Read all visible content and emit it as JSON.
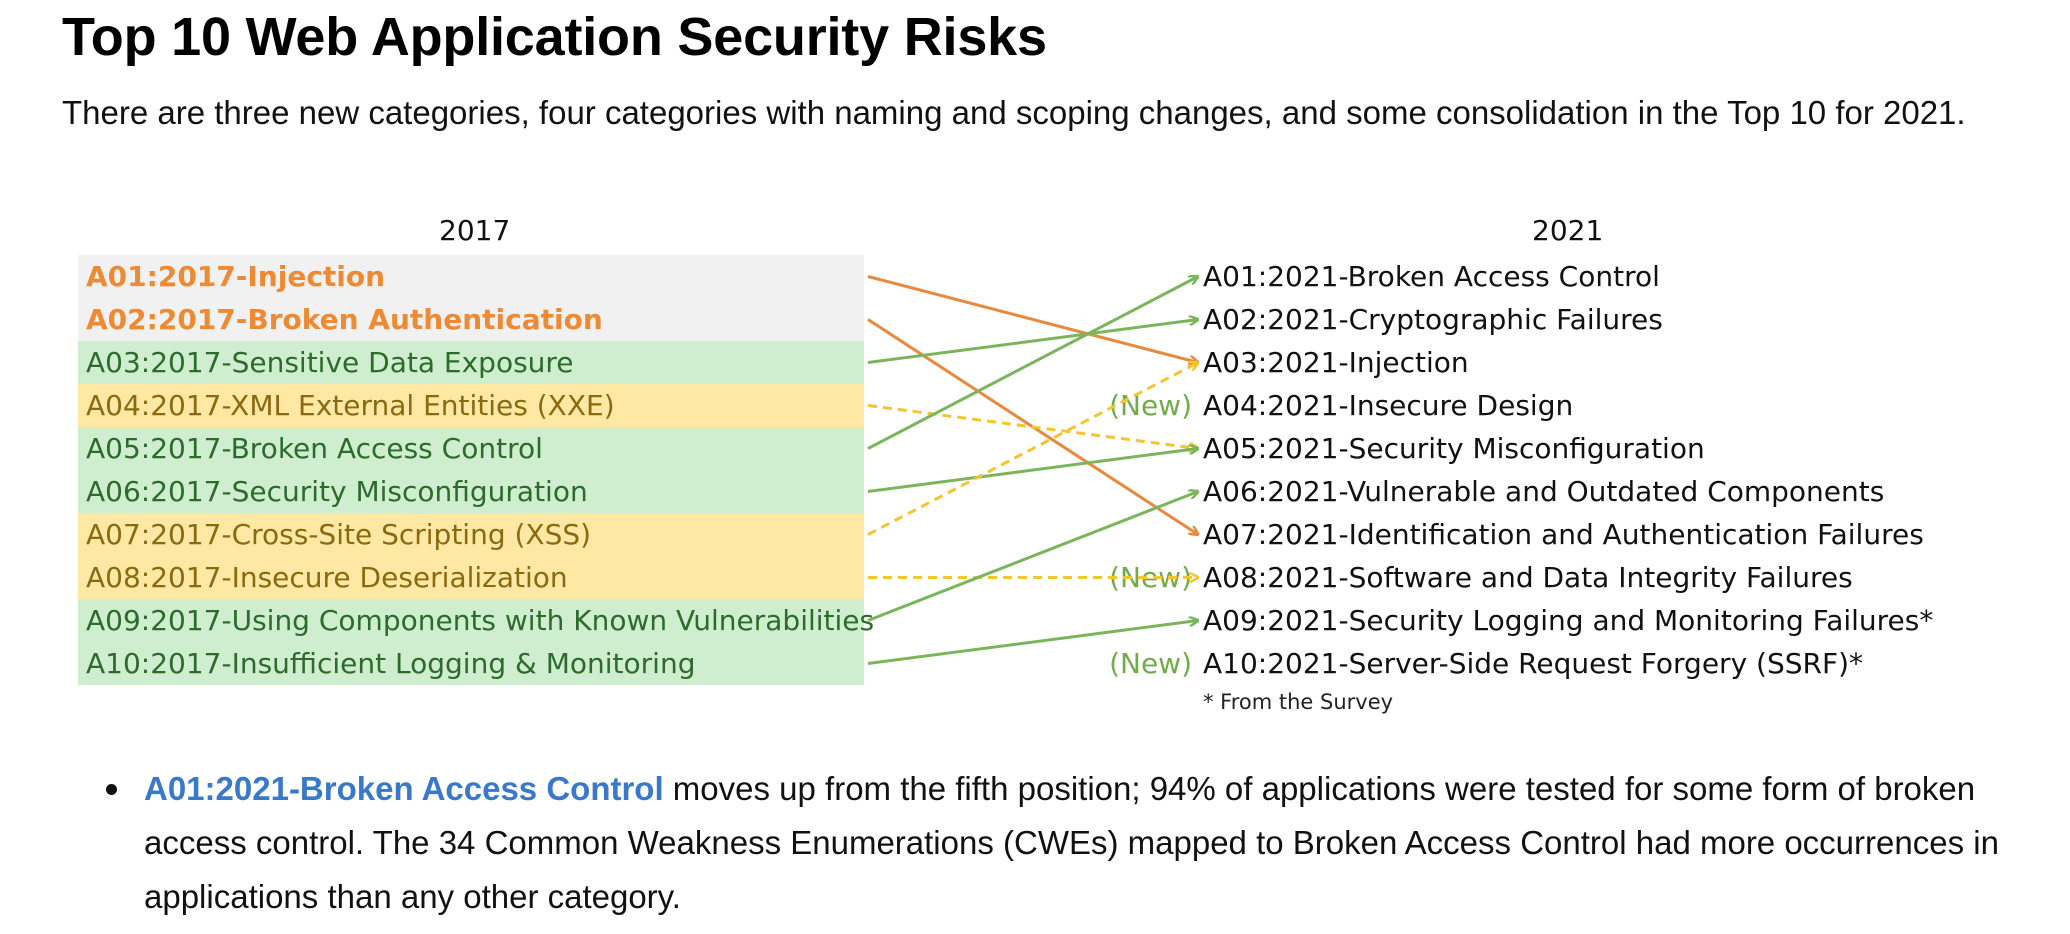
{
  "page": {
    "title": "Top 10 Web Application Security Risks",
    "intro": "There are three new categories, four categories with naming and scoping changes, and some consolidation in the Top 10 for 2021."
  },
  "diagram": {
    "left_header": "2017",
    "right_header": "2021",
    "left_items": [
      {
        "label": "A01:2017-Injection",
        "kind": "gray"
      },
      {
        "label": "A02:2017-Broken Authentication",
        "kind": "gray"
      },
      {
        "label": "A03:2017-Sensitive Data Exposure",
        "kind": "green"
      },
      {
        "label": "A04:2017-XML External Entities (XXE)",
        "kind": "yellow"
      },
      {
        "label": "A05:2017-Broken Access Control",
        "kind": "green"
      },
      {
        "label": "A06:2017-Security Misconfiguration",
        "kind": "green"
      },
      {
        "label": "A07:2017-Cross-Site Scripting (XSS)",
        "kind": "yellow"
      },
      {
        "label": "A08:2017-Insecure Deserialization",
        "kind": "yellow"
      },
      {
        "label": "A09:2017-Using Components with Known Vulnerabilities",
        "kind": "green"
      },
      {
        "label": "A10:2017-Insufficient Logging & Monitoring",
        "kind": "green"
      }
    ],
    "right_items": [
      {
        "label": "A01:2021-Broken Access Control",
        "tag": ""
      },
      {
        "label": "A02:2021-Cryptographic Failures",
        "tag": ""
      },
      {
        "label": "A03:2021-Injection",
        "tag": ""
      },
      {
        "label": "A04:2021-Insecure Design",
        "tag": "(New)"
      },
      {
        "label": "A05:2021-Security Misconfiguration",
        "tag": ""
      },
      {
        "label": "A06:2021-Vulnerable and Outdated Components",
        "tag": ""
      },
      {
        "label": "A07:2021-Identification and Authentication Failures",
        "tag": ""
      },
      {
        "label": "A08:2021-Software and Data Integrity Failures",
        "tag": "(New)"
      },
      {
        "label": "A09:2021-Security Logging and Monitoring Failures*",
        "tag": ""
      },
      {
        "label": "A10:2021-Server-Side Request Forgery (SSRF)*",
        "tag": "(New)"
      }
    ],
    "survey_note": "* From the Survey",
    "mappings": [
      {
        "from": 0,
        "to": 2,
        "style": "orange"
      },
      {
        "from": 1,
        "to": 6,
        "style": "orange"
      },
      {
        "from": 2,
        "to": 1,
        "style": "green"
      },
      {
        "from": 3,
        "to": 4,
        "style": "yellow-dashed"
      },
      {
        "from": 4,
        "to": 0,
        "style": "green"
      },
      {
        "from": 5,
        "to": 4,
        "style": "green"
      },
      {
        "from": 6,
        "to": 2,
        "style": "yellow-dashed"
      },
      {
        "from": 7,
        "to": 7,
        "style": "yellow-dashed"
      },
      {
        "from": 8,
        "to": 5,
        "style": "green"
      },
      {
        "from": 9,
        "to": 8,
        "style": "green"
      }
    ],
    "colors": {
      "orange": "#e88a3e",
      "green": "#7ab55c",
      "yellow-dashed": "#f5c431"
    }
  },
  "bullets": [
    {
      "link": "A01:2021-Broken Access Control",
      "text": " moves up from the fifth position; 94% of applications were tested for some form of broken access control. The 34 Common Weakness Enumerations (CWEs) mapped to Broken Access Control had more occurrences in applications than any other category."
    }
  ]
}
